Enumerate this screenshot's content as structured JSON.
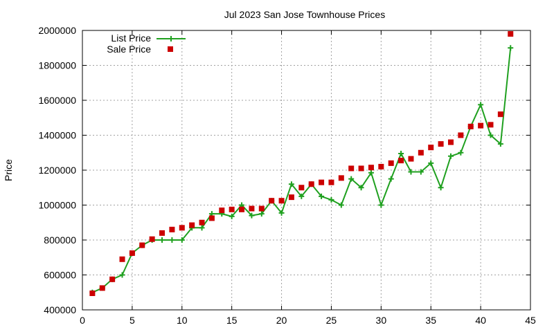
{
  "chart_data": {
    "type": "line",
    "title": "Jul 2023 San Jose Townhouse Prices",
    "xlabel": "",
    "ylabel": "Price",
    "xlim": [
      0,
      45
    ],
    "ylim": [
      400000,
      2000000
    ],
    "x_ticks": [
      0,
      5,
      10,
      15,
      20,
      25,
      30,
      35,
      40,
      45
    ],
    "y_ticks": [
      400000,
      600000,
      800000,
      1000000,
      1200000,
      1400000,
      1600000,
      1800000,
      2000000
    ],
    "grid": true,
    "legend_position": "top-left",
    "series": [
      {
        "name": "List Price",
        "style": "line+cross",
        "color": "#1fa01f",
        "x": [
          1,
          2,
          3,
          4,
          5,
          6,
          7,
          8,
          9,
          10,
          11,
          12,
          13,
          14,
          15,
          16,
          17,
          18,
          19,
          20,
          21,
          22,
          23,
          24,
          25,
          26,
          27,
          28,
          29,
          30,
          31,
          32,
          33,
          34,
          35,
          36,
          37,
          38,
          39,
          40,
          41,
          42,
          43
        ],
        "values": [
          500000,
          525000,
          575000,
          600000,
          725000,
          770000,
          800000,
          800000,
          800000,
          800000,
          870000,
          870000,
          950000,
          950000,
          935000,
          1000000,
          940000,
          950000,
          1025000,
          955000,
          1120000,
          1050000,
          1120000,
          1050000,
          1030000,
          1000000,
          1150000,
          1100000,
          1185000,
          1000000,
          1150000,
          1295000,
          1190000,
          1190000,
          1240000,
          1100000,
          1280000,
          1300000,
          1450000,
          1575000,
          1400000,
          1350000,
          1900000
        ]
      },
      {
        "name": "Sale Price",
        "style": "square",
        "color": "#cc0000",
        "x": [
          1,
          2,
          3,
          4,
          5,
          6,
          7,
          8,
          9,
          10,
          11,
          12,
          13,
          14,
          15,
          16,
          17,
          18,
          19,
          20,
          21,
          22,
          23,
          24,
          25,
          26,
          27,
          28,
          29,
          30,
          31,
          32,
          33,
          34,
          35,
          36,
          37,
          38,
          39,
          40,
          41,
          42,
          43
        ],
        "values": [
          495000,
          525000,
          575000,
          690000,
          725000,
          770000,
          805000,
          840000,
          860000,
          870000,
          885000,
          900000,
          925000,
          970000,
          975000,
          975000,
          980000,
          980000,
          1025000,
          1025000,
          1045000,
          1100000,
          1120000,
          1130000,
          1130000,
          1155000,
          1210000,
          1210000,
          1215000,
          1220000,
          1240000,
          1255000,
          1265000,
          1300000,
          1330000,
          1350000,
          1360000,
          1400000,
          1450000,
          1455000,
          1460000,
          1520000,
          1980000
        ]
      }
    ]
  }
}
